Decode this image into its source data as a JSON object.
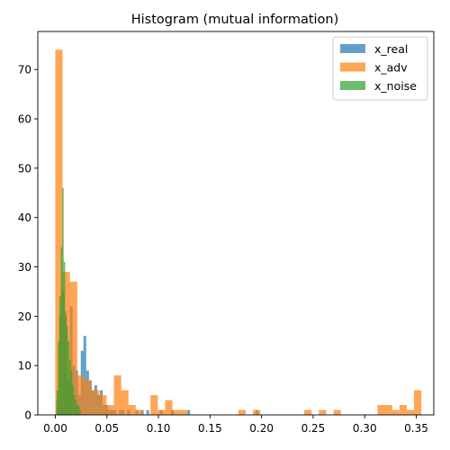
{
  "chart_data": {
    "type": "histogram",
    "title": "Histogram (mutual information)",
    "xlabel": "",
    "ylabel": "",
    "xlim": [
      -0.017,
      0.367
    ],
    "ylim": [
      0,
      77.7
    ],
    "xticks": [
      0.0,
      0.05,
      0.1,
      0.15,
      0.2,
      0.25,
      0.3,
      0.35
    ],
    "xtick_labels": [
      "0.00",
      "0.05",
      "0.10",
      "0.15",
      "0.20",
      "0.25",
      "0.30",
      "0.35"
    ],
    "yticks": [
      0,
      10,
      20,
      30,
      40,
      50,
      60,
      70
    ],
    "ytick_labels": [
      "0",
      "10",
      "20",
      "30",
      "40",
      "50",
      "60",
      "70"
    ],
    "grid": false,
    "legend_position": "top-right",
    "bar_alpha": 0.7,
    "series": [
      {
        "name": "x_real",
        "color": "#1f77b4",
        "bin_width": 0.00265,
        "bars": [
          [
            0.0021,
            3
          ],
          [
            0.0048,
            20
          ],
          [
            0.0074,
            25
          ],
          [
            0.0101,
            21
          ],
          [
            0.0127,
            7
          ],
          [
            0.0154,
            22
          ],
          [
            0.018,
            10
          ],
          [
            0.0207,
            9
          ],
          [
            0.0233,
            4
          ],
          [
            0.026,
            13
          ],
          [
            0.0286,
            16
          ],
          [
            0.0313,
            9
          ],
          [
            0.0339,
            7
          ],
          [
            0.0366,
            5
          ],
          [
            0.0392,
            6
          ],
          [
            0.0419,
            4
          ],
          [
            0.0445,
            5
          ],
          [
            0.0472,
            2
          ],
          [
            0.0498,
            2
          ],
          [
            0.0525,
            1
          ],
          [
            0.0551,
            1
          ],
          [
            0.0578,
            1
          ],
          [
            0.0631,
            1
          ],
          [
            0.0657,
            1
          ],
          [
            0.071,
            1
          ],
          [
            0.079,
            1
          ],
          [
            0.0843,
            1
          ],
          [
            0.0896,
            1
          ],
          [
            0.1028,
            1
          ],
          [
            0.1134,
            1
          ],
          [
            0.1293,
            1
          ],
          [
            0.1956,
            1
          ]
        ]
      },
      {
        "name": "x_adv",
        "color": "#ff7f0e",
        "bin_width": 0.0071,
        "bars": [
          [
            0.0035,
            74
          ],
          [
            0.0106,
            29
          ],
          [
            0.0177,
            27
          ],
          [
            0.0248,
            8
          ],
          [
            0.0319,
            7
          ],
          [
            0.039,
            5
          ],
          [
            0.0461,
            4
          ],
          [
            0.0532,
            2
          ],
          [
            0.0603,
            8
          ],
          [
            0.0674,
            5
          ],
          [
            0.0745,
            2
          ],
          [
            0.0816,
            1
          ],
          [
            0.0958,
            4
          ],
          [
            0.1029,
            1
          ],
          [
            0.11,
            3
          ],
          [
            0.1171,
            1
          ],
          [
            0.1242,
            1
          ],
          [
            0.181,
            1
          ],
          [
            0.1952,
            1
          ],
          [
            0.2449,
            1
          ],
          [
            0.2591,
            1
          ],
          [
            0.2733,
            1
          ],
          [
            0.3159,
            2
          ],
          [
            0.323,
            2
          ],
          [
            0.3301,
            1
          ],
          [
            0.3372,
            2
          ],
          [
            0.3443,
            1
          ],
          [
            0.3514,
            5
          ]
        ]
      },
      {
        "name": "x_noise",
        "color": "#2ca02c",
        "bin_width": 0.00138,
        "bars": [
          [
            0.0019,
            5
          ],
          [
            0.0033,
            15
          ],
          [
            0.0046,
            24
          ],
          [
            0.006,
            34
          ],
          [
            0.0074,
            46
          ],
          [
            0.0088,
            31
          ],
          [
            0.0102,
            20
          ],
          [
            0.0115,
            18
          ],
          [
            0.0129,
            15
          ],
          [
            0.0143,
            11
          ],
          [
            0.0157,
            9
          ],
          [
            0.0171,
            6
          ],
          [
            0.0184,
            4
          ],
          [
            0.0198,
            3
          ],
          [
            0.0212,
            2
          ],
          [
            0.0226,
            2
          ],
          [
            0.024,
            1
          ]
        ]
      }
    ]
  }
}
